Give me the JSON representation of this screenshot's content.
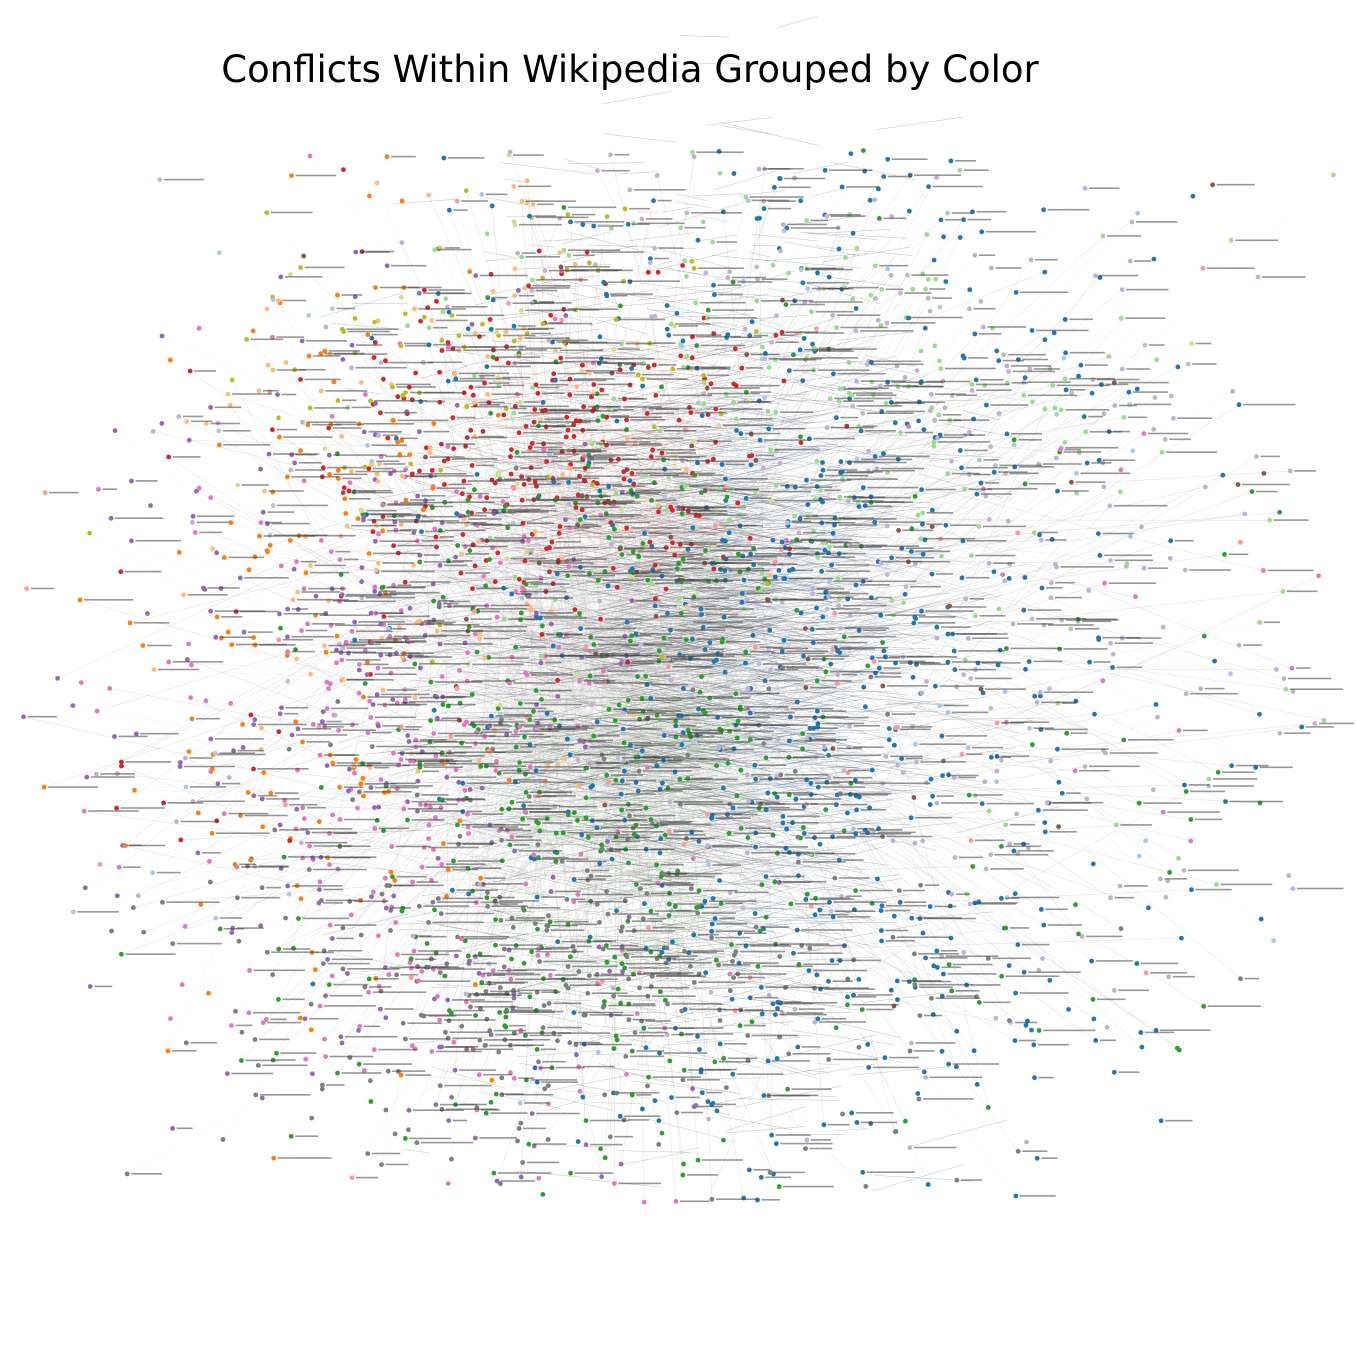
{
  "title": "Conflicts Within Wikipedia Grouped by Color",
  "graph": {
    "type": "force-directed-network",
    "node_count_estimate": 3000,
    "colors": {
      "blue": "#1f77b4",
      "green": "#2ca02c",
      "red": "#d62728",
      "pink": "#e377c2",
      "gray": "#7f7f7f",
      "purple": "#9467bd",
      "lavender": "#c5b0d5",
      "orange": "#ff7f0e",
      "light_orange": "#ffbb78",
      "light_green": "#98df8a",
      "olive": "#bcbd22",
      "light_blue": "#aec7e8",
      "brown": "#8c564b",
      "light_red": "#ff9896",
      "khaki": "#dbdb8d",
      "edge": "#d4d4d4"
    },
    "label_color": "#444444"
  }
}
